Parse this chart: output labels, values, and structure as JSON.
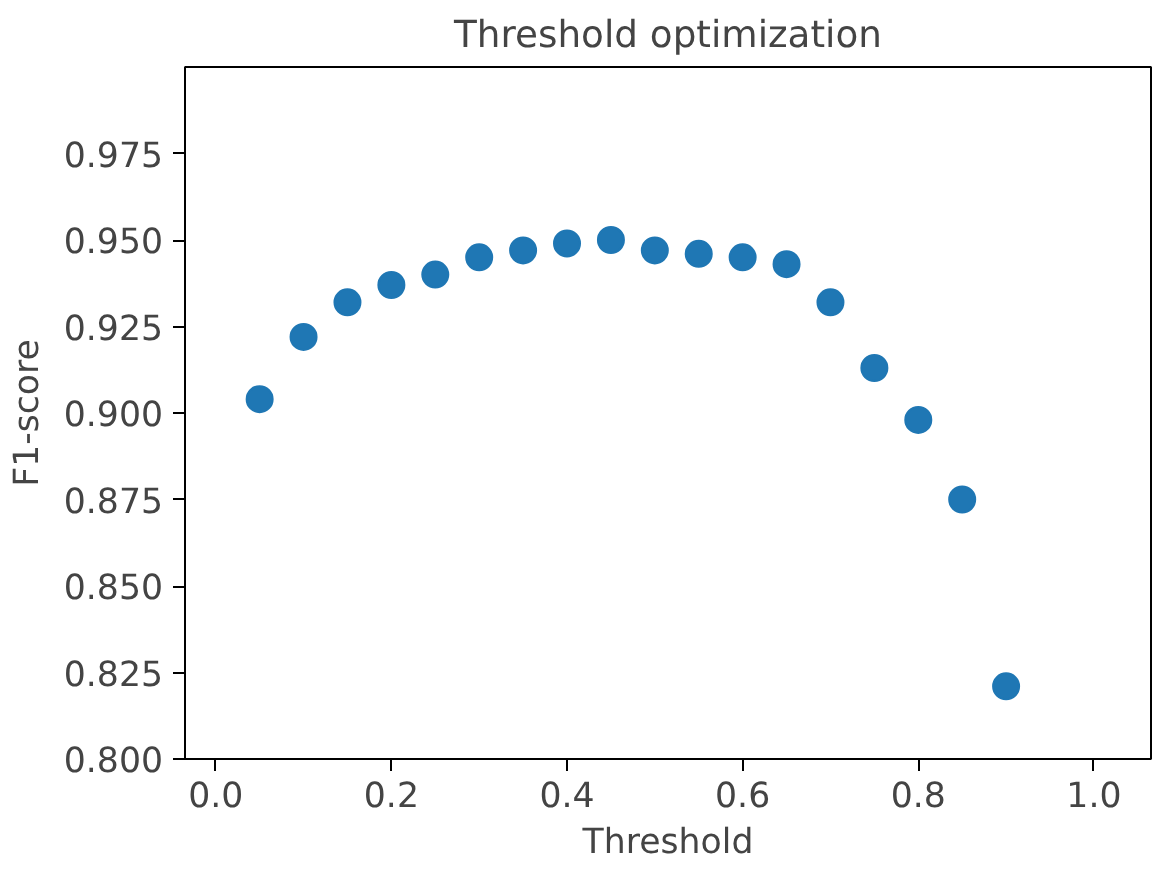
{
  "chart_data": {
    "type": "scatter",
    "title": "Threshold optimization",
    "xlabel": "Threshold",
    "ylabel": "F1-score",
    "x": [
      0.05,
      0.1,
      0.15,
      0.2,
      0.25,
      0.3,
      0.35,
      0.4,
      0.45,
      0.5,
      0.55,
      0.6,
      0.65,
      0.7,
      0.75,
      0.8,
      0.85,
      0.9
    ],
    "series": [
      {
        "color": "#1f77b4",
        "values": [
          0.904,
          0.922,
          0.932,
          0.937,
          0.94,
          0.945,
          0.947,
          0.949,
          0.95,
          0.947,
          0.946,
          0.945,
          0.943,
          0.932,
          0.913,
          0.898,
          0.875,
          0.821
        ]
      }
    ],
    "xlim": [
      -0.035,
      1.065
    ],
    "ylim": [
      0.8,
      1.0
    ],
    "xticks": [
      {
        "value": 0.0,
        "label": "0.0"
      },
      0.2,
      0.4,
      0.6,
      0.8,
      {
        "value": 1.0,
        "label": "1.0"
      }
    ],
    "yticks": [
      {
        "value": 0.8,
        "label": "0.800"
      },
      {
        "value": 0.825,
        "label": "0.825"
      },
      {
        "value": 0.85,
        "label": "0.850"
      },
      {
        "value": 0.875,
        "label": "0.875"
      },
      {
        "value": 0.9,
        "label": "0.900"
      },
      {
        "value": 0.925,
        "label": "0.925"
      },
      {
        "value": 0.95,
        "label": "0.950"
      },
      {
        "value": 0.975,
        "label": "0.975"
      }
    ],
    "marker": "circle",
    "grid": false
  }
}
